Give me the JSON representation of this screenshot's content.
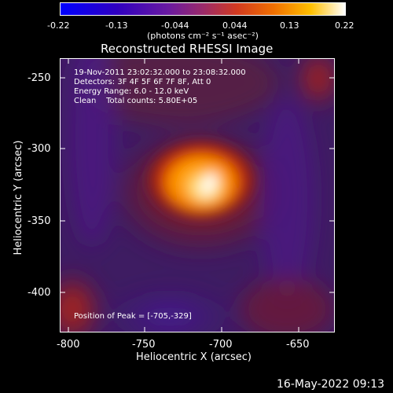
{
  "colorbar": {
    "ticks": [
      "-0.22",
      "-0.13",
      "-0.044",
      "0.044",
      "0.13",
      "0.22"
    ],
    "units": "(photons cm⁻² s⁻¹ asec⁻²)"
  },
  "title": "Reconstructed RHESSI Image",
  "info": {
    "time": "19-Nov-2011 23:02:32.000 to 23:08:32.000",
    "detectors": "Detectors: 3F 4F 5F 6F 7F 8F, Att 0",
    "energy": "Energy Range: 6.0 - 12.0 keV",
    "clean": "Clean    Total counts: 5.80E+05"
  },
  "peak_label": "Position of Peak = [-705,-329]",
  "xaxis": {
    "label": "Heliocentric X (arcsec)",
    "ticks": [
      "-800",
      "-750",
      "-700",
      "-650"
    ]
  },
  "yaxis": {
    "label": "Heliocentric Y (arcsec)",
    "ticks": [
      "-250",
      "-300",
      "-350",
      "-400"
    ]
  },
  "timestamp": "16-May-2022 09:13",
  "colors": {
    "background": "#000000",
    "foreground": "#ffffff"
  }
}
